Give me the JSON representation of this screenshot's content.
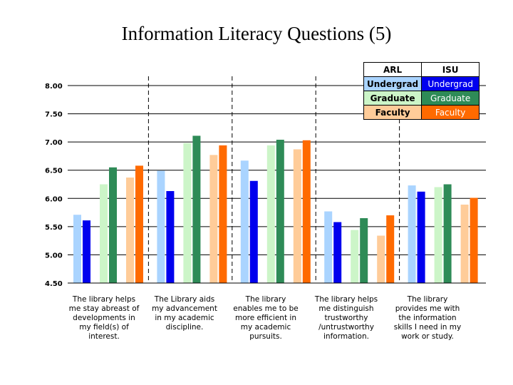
{
  "slide_title": "Information Literacy Questions (5)",
  "legend": {
    "header_left": "ARL",
    "header_right": "ISU",
    "rows": [
      {
        "left": "Undergrad",
        "right": "Undergrad",
        "left_bg": "#aad4ff",
        "right_bg": "#0000ee",
        "right_fg": "#ffffff"
      },
      {
        "left": "Graduate",
        "right": "Graduate",
        "left_bg": "#ccf5c8",
        "right_bg": "#2e8b57",
        "right_fg": "#ffffff"
      },
      {
        "left": "Faculty",
        "right": "Faculty",
        "left_bg": "#ffcc99",
        "right_bg": "#ff6a00",
        "right_fg": "#ffffff"
      }
    ]
  },
  "chart_data": {
    "type": "bar",
    "title": "",
    "xlabel": "",
    "ylabel": "",
    "ylim": [
      4.5,
      8.0
    ],
    "yticks": [
      "4.50",
      "5.00",
      "5.50",
      "6.00",
      "6.50",
      "7.00",
      "7.50",
      "8.00"
    ],
    "grid": true,
    "legend_position": "top-right",
    "categories": [
      "The library helps me stay abreast of developments in my field(s) of interest.",
      "The Library aids my advancement in my academic discipline.",
      "The library enables me to be more efficient in my academic pursuits.",
      "The library helps me distinguish trustworthy /untrustworthy information.",
      "The library provides me with the information skills I need in my work or study."
    ],
    "series": [
      {
        "name": "ARL Undergrad",
        "color": "#aad4ff",
        "values": [
          5.71,
          6.49,
          6.67,
          5.77,
          6.23
        ]
      },
      {
        "name": "ISU Undergrad",
        "color": "#0000ee",
        "values": [
          5.61,
          6.13,
          6.31,
          5.58,
          6.12
        ]
      },
      {
        "name": "ARL Graduate",
        "color": "#ccf5c8",
        "values": [
          6.25,
          6.98,
          6.94,
          5.44,
          6.2
        ]
      },
      {
        "name": "ISU Graduate",
        "color": "#2e8b57",
        "values": [
          6.55,
          7.11,
          7.04,
          5.65,
          6.25
        ]
      },
      {
        "name": "ARL Faculty",
        "color": "#ffcc99",
        "values": [
          6.37,
          6.77,
          6.87,
          5.34,
          5.89
        ]
      },
      {
        "name": "ISU Faculty",
        "color": "#ff6a00",
        "values": [
          6.58,
          6.94,
          7.03,
          5.7,
          6.01
        ]
      }
    ]
  }
}
